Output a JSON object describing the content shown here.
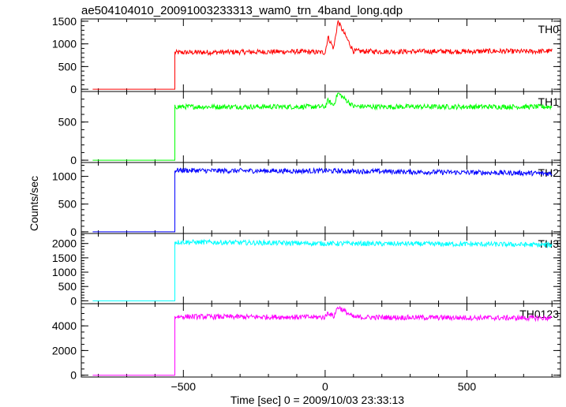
{
  "chart_data": {
    "type": "line",
    "title": "ae504104010_20091003233313_wam0_trn_4band_long.qdp",
    "xlabel": "Time [sec] 0 = 2009/10/03 23:33:13",
    "ylabel": "Counts/sec",
    "xlim": [
      -860,
      830
    ],
    "x_ticks": [
      -500,
      0,
      500
    ],
    "x_tick_labels": [
      "−500",
      "0",
      "500"
    ],
    "grid": false,
    "panels": [
      {
        "name": "TH0",
        "color": "#ff0000",
        "ylim": [
          -50,
          1550
        ],
        "y_ticks": [
          0,
          500,
          1000,
          1500
        ],
        "y_tick_labels": [
          "0",
          "500",
          "1000",
          "1500"
        ],
        "y_minor_step": 100,
        "series": [
          {
            "x": [
              -820,
              -530
            ],
            "y": [
              0,
              0
            ]
          },
          {
            "x": [
              -530
            ],
            "y": [
              810
            ]
          },
          {
            "x": [
              -500,
              -400,
              -300,
              -200,
              -100,
              0,
              10,
              30,
              45,
              100,
              200,
              300,
              400,
              500,
              600,
              700,
              800
            ],
            "y": [
              810,
              815,
              820,
              825,
              830,
              810,
              1150,
              900,
              1500,
              840,
              830,
              830,
              835,
              830,
              840,
              830,
              840
            ]
          }
        ]
      },
      {
        "name": "TH1",
        "color": "#00ff00",
        "ylim": [
          -30,
          900
        ],
        "y_ticks": [
          0,
          500
        ],
        "y_tick_labels": [
          "0",
          "500"
        ],
        "y_minor_step": 100,
        "series": [
          {
            "x": [
              -820,
              -530
            ],
            "y": [
              0,
              0
            ]
          },
          {
            "x": [
              -530
            ],
            "y": [
              690
            ]
          },
          {
            "x": [
              -500,
              -400,
              -300,
              -200,
              -100,
              0,
              10,
              30,
              45,
              100,
              200,
              300,
              400,
              500,
              600,
              700,
              800
            ],
            "y": [
              700,
              700,
              700,
              700,
              700,
              700,
              780,
              720,
              880,
              705,
              700,
              700,
              700,
              700,
              700,
              700,
              700
            ]
          }
        ]
      },
      {
        "name": "TH2",
        "color": "#0000ff",
        "ylim": [
          -30,
          1250
        ],
        "y_ticks": [
          0,
          500,
          1000
        ],
        "y_tick_labels": [
          "0",
          "500",
          "1000"
        ],
        "y_minor_step": 100,
        "series": [
          {
            "x": [
              -820,
              -530
            ],
            "y": [
              0,
              0
            ]
          },
          {
            "x": [
              -530
            ],
            "y": [
              1100
            ]
          },
          {
            "x": [
              -500,
              -400,
              -300,
              -200,
              -100,
              0,
              100,
              200,
              300,
              400,
              500,
              600,
              700,
              800
            ],
            "y": [
              1110,
              1100,
              1100,
              1100,
              1095,
              1100,
              1090,
              1090,
              1080,
              1075,
              1070,
              1065,
              1060,
              1050
            ]
          }
        ]
      },
      {
        "name": "TH3",
        "color": "#00ffff",
        "ylim": [
          -100,
          2350
        ],
        "y_ticks": [
          0,
          500,
          1000,
          1500,
          2000
        ],
        "y_tick_labels": [
          "0",
          "500",
          "1000",
          "1500",
          "2000"
        ],
        "y_minor_step": 100,
        "series": [
          {
            "x": [
              -820,
              -530
            ],
            "y": [
              0,
              0
            ]
          },
          {
            "x": [
              -530
            ],
            "y": [
              2050
            ]
          },
          {
            "x": [
              -500,
              -400,
              -300,
              -200,
              -100,
              0,
              100,
              200,
              300,
              400,
              500,
              600,
              700,
              800
            ],
            "y": [
              2050,
              2040,
              2030,
              2020,
              2010,
              2000,
              2000,
              1990,
              1990,
              1980,
              1980,
              1970,
              1960,
              1950
            ]
          }
        ]
      },
      {
        "name": "TH0123",
        "color": "#ff00ff",
        "ylim": [
          -150,
          5800
        ],
        "y_ticks": [
          0,
          2000,
          4000
        ],
        "y_tick_labels": [
          "0",
          "2000",
          "4000"
        ],
        "y_minor_step": 500,
        "series": [
          {
            "x": [
              -820,
              -530
            ],
            "y": [
              0,
              0
            ]
          },
          {
            "x": [
              -530
            ],
            "y": [
              4750
            ]
          },
          {
            "x": [
              -500,
              -400,
              -300,
              -200,
              -100,
              0,
              10,
              30,
              45,
              100,
              200,
              300,
              400,
              500,
              600,
              700,
              800
            ],
            "y": [
              4750,
              4740,
              4730,
              4720,
              4720,
              4700,
              5100,
              4750,
              5550,
              4700,
              4690,
              4680,
              4670,
              4660,
              4650,
              4640,
              4630
            ]
          }
        ]
      }
    ]
  }
}
